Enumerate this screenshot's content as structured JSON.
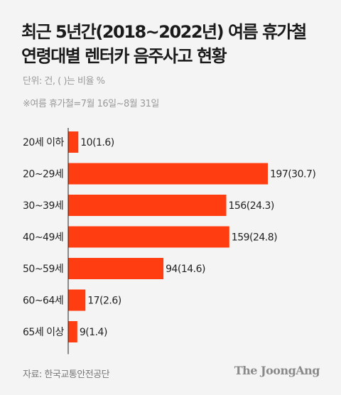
{
  "header": {
    "title_line1": "최근 5년간(2018~2022년) 여름 휴가철",
    "title_line2": "연령대별 렌터카 음주사고 현황",
    "unit": "단위: 건, ( )는 비율 %",
    "note": "※여름 휴가철=7월 16일~8월 31일"
  },
  "footer": {
    "source": "자료: 한국교통안전공단",
    "logo": "The JoongAng"
  },
  "chart_data": {
    "type": "bar",
    "orientation": "horizontal",
    "categories": [
      "20세 이하",
      "20~29세",
      "30~39세",
      "40~49세",
      "50~59세",
      "60~64세",
      "65세 이상"
    ],
    "values": [
      10,
      197,
      156,
      159,
      94,
      17,
      9
    ],
    "value_labels": [
      "10(1.6)",
      "197(30.7)",
      "156(24.3)",
      "159(24.8)",
      "94(14.6)",
      "17(2.6)",
      "9(1.4)"
    ],
    "percentages": [
      1.6,
      30.7,
      24.3,
      24.8,
      14.6,
      2.6,
      1.4
    ],
    "bar_color": "#ff3d10",
    "axis_color": "#222222",
    "xlim": [
      0,
      197
    ],
    "grid": false,
    "legend": false
  }
}
